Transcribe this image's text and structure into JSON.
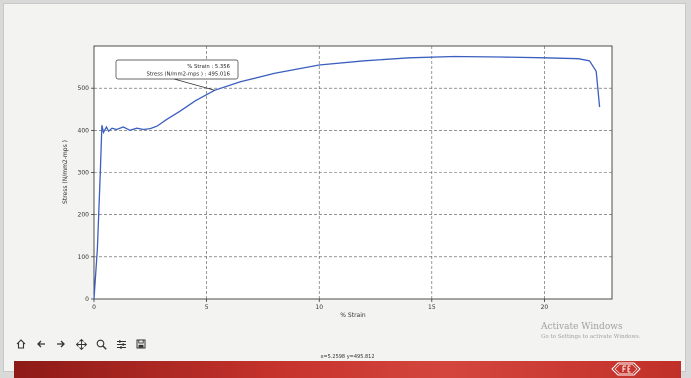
{
  "chart_data": {
    "type": "line",
    "xlabel": "% Strain",
    "ylabel": "Stress (N/mm2-mps )",
    "xlim": [
      0,
      23.0
    ],
    "ylim": [
      0,
      600
    ],
    "xticks": [
      0,
      5,
      10,
      15,
      20
    ],
    "yticks": [
      0,
      100,
      200,
      300,
      400,
      500
    ],
    "grid": true,
    "series": [
      {
        "color": "#3b5fbf",
        "x": [
          0,
          0.15,
          0.28,
          0.35,
          0.42,
          0.55,
          0.65,
          0.8,
          1.0,
          1.3,
          1.6,
          1.9,
          2.2,
          2.5,
          2.8,
          3.2,
          3.8,
          4.5,
          5.356,
          6.5,
          8.0,
          10.0,
          12.0,
          14.0,
          16.0,
          18.0,
          20.0,
          21.5,
          22.0,
          22.3,
          22.45
        ],
        "y": [
          0,
          120,
          300,
          412,
          395,
          408,
          398,
          405,
          402,
          408,
          400,
          405,
          402,
          404,
          410,
          425,
          445,
          470,
          495,
          515,
          535,
          555,
          565,
          572,
          575,
          574,
          572,
          570,
          565,
          540,
          455
        ]
      }
    ],
    "annotation": {
      "line1": "% Strain    : 5.356",
      "line2": "Stress  (N/mm2-mps )  : 495.016",
      "point": [
        5.356,
        495.016
      ]
    }
  },
  "statusbar": {
    "readout": "x=5.2598    y=495.812"
  },
  "watermark": {
    "line1": "Activate Windows",
    "line2": "Go to Settings to activate Windows."
  },
  "toolbar": {
    "buttons": [
      "home-icon",
      "back-icon",
      "forward-icon",
      "pan-icon",
      "zoom-icon",
      "configure-icon",
      "save-icon"
    ]
  },
  "colors": {
    "line": "#3b5fbf",
    "footer": "#c6332c"
  }
}
